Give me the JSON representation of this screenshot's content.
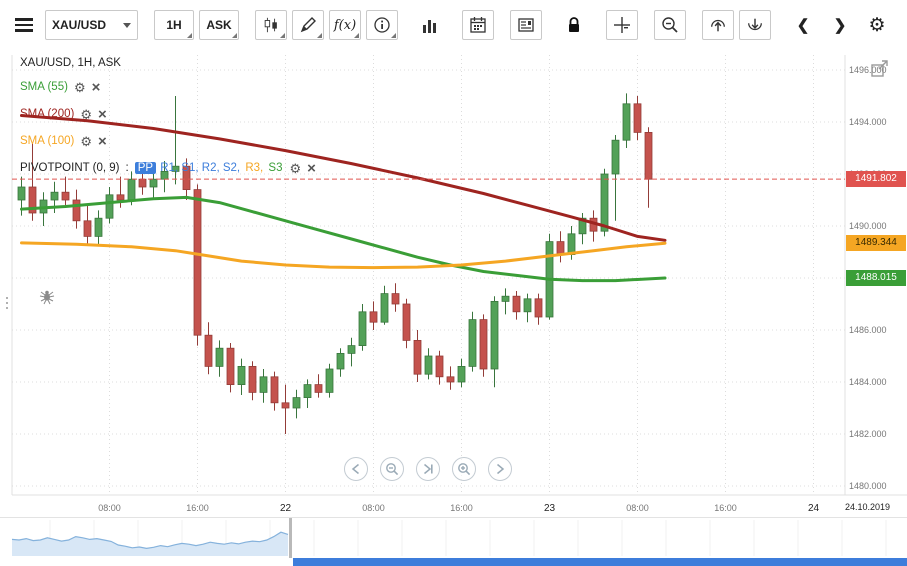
{
  "window": {
    "title": "XAU/USD, 1H, ASK"
  },
  "icons": {
    "gear": "⚙",
    "close": "×",
    "toolbar_list": [
      "menu-icon",
      "chart-type-candlestick-icon",
      "draw-icon",
      "fx-indicators-icon",
      "info-icon",
      "volume-bars-icon",
      "calendar-icon",
      "report-icon",
      "lock-icon",
      "crosshair-icon",
      "zoom-out-icon",
      "upload-circle-icon",
      "download-circle-icon",
      "chevron-left-icon",
      "chevron-right-icon",
      "settings-gear-icon"
    ]
  },
  "toolbar": {
    "symbol": "XAU/USD",
    "timeframe": "1H",
    "price_side": "ASK",
    "fx_label": "f(x)",
    "chevron_left": "❮",
    "chevron_right": "❯"
  },
  "legend": {
    "title": "XAU/USD, 1H, ASK",
    "indicators": [
      {
        "label": "SMA (55)",
        "color": "#3a9e37"
      },
      {
        "label": "SMA (200)",
        "color": "#9e2420"
      },
      {
        "label": "SMA (100)",
        "color": "#f5a623"
      }
    ],
    "pivot": {
      "label": "PIVOTPOINT (0, 9)",
      "separator": " : ",
      "segments": [
        {
          "text": "PP",
          "color": "#ffffff",
          "bg": "#3d7edb"
        },
        {
          "text": " R1, S1, R2, S2,",
          "color": "#3d7edb"
        },
        {
          "text": " R3,",
          "color": "#f5a623"
        },
        {
          "text": " S3",
          "color": "#3a9e37"
        }
      ]
    }
  },
  "chart_data": {
    "type": "candlestick",
    "symbol": "XAU/USD",
    "interval": "1H",
    "price_side": "ASK",
    "current_price": 1491.802,
    "price_axis": {
      "min": 1480,
      "max": 1496,
      "tick_step": 2
    },
    "time_axis": {
      "ticks": [
        {
          "index": 8,
          "text": "08:00",
          "day": false
        },
        {
          "index": 16,
          "text": "16:00",
          "day": false
        },
        {
          "index": 24,
          "text": "22",
          "day": true
        },
        {
          "index": 32,
          "text": "08:00",
          "day": false
        },
        {
          "index": 40,
          "text": "16:00",
          "day": false
        },
        {
          "index": 48,
          "text": "23",
          "day": true
        },
        {
          "index": 56,
          "text": "08:00",
          "day": false
        },
        {
          "index": 64,
          "text": "16:00",
          "day": false
        },
        {
          "index": 72,
          "text": "24",
          "day": true
        }
      ],
      "end_date_label": "24.10.2019"
    },
    "colors": {
      "candle_up": "#53a158",
      "candle_up_stroke": "#39753d",
      "candle_down": "#c4524d",
      "candle_down_stroke": "#933c38",
      "current_price_line": "#e0534f",
      "grid": "#dcdcdc"
    },
    "price_badges": [
      {
        "name": "last-price-badge",
        "value": "1491.802",
        "price": 1491.802,
        "bg": "#e0534f",
        "text": "#ffffff"
      },
      {
        "name": "sma100-value-badge",
        "value": "1489.344",
        "price": 1489.344,
        "bg": "#f5a623",
        "text": "#3a2b00"
      },
      {
        "name": "sma55-value-badge",
        "value": "1488.015",
        "price": 1488.015,
        "bg": "#3a9e37",
        "text": "#ffffff"
      }
    ],
    "candles": [
      [
        1491.0,
        1491.9,
        1490.4,
        1491.5
      ],
      [
        1491.5,
        1493.2,
        1490.2,
        1490.5
      ],
      [
        1490.5,
        1491.3,
        1490.0,
        1491.0
      ],
      [
        1491.0,
        1491.7,
        1490.5,
        1491.3
      ],
      [
        1491.3,
        1491.9,
        1490.8,
        1491.0
      ],
      [
        1491.0,
        1491.4,
        1489.9,
        1490.2
      ],
      [
        1490.2,
        1490.8,
        1489.3,
        1489.6
      ],
      [
        1489.6,
        1490.6,
        1489.3,
        1490.3
      ],
      [
        1490.3,
        1491.5,
        1490.1,
        1491.2
      ],
      [
        1491.2,
        1491.9,
        1490.7,
        1491.0
      ],
      [
        1491.0,
        1492.1,
        1490.8,
        1491.8
      ],
      [
        1491.8,
        1492.3,
        1491.2,
        1491.5
      ],
      [
        1491.5,
        1492.0,
        1491.0,
        1491.8
      ],
      [
        1491.8,
        1492.5,
        1491.3,
        1492.1
      ],
      [
        1492.1,
        1495.0,
        1491.6,
        1492.3
      ],
      [
        1492.3,
        1492.6,
        1491.0,
        1491.4
      ],
      [
        1491.4,
        1491.6,
        1485.4,
        1485.8
      ],
      [
        1485.8,
        1486.3,
        1484.3,
        1484.6
      ],
      [
        1484.6,
        1485.6,
        1484.2,
        1485.3
      ],
      [
        1485.3,
        1485.5,
        1483.6,
        1483.9
      ],
      [
        1483.9,
        1484.9,
        1483.5,
        1484.6
      ],
      [
        1484.6,
        1484.8,
        1483.3,
        1483.6
      ],
      [
        1483.6,
        1484.5,
        1483.2,
        1484.2
      ],
      [
        1484.2,
        1484.4,
        1482.9,
        1483.2
      ],
      [
        1483.2,
        1483.9,
        1482.0,
        1483.0
      ],
      [
        1483.0,
        1483.7,
        1482.6,
        1483.4
      ],
      [
        1483.4,
        1484.1,
        1483.0,
        1483.9
      ],
      [
        1483.9,
        1484.3,
        1483.4,
        1483.6
      ],
      [
        1483.6,
        1484.7,
        1483.4,
        1484.5
      ],
      [
        1484.5,
        1485.3,
        1484.2,
        1485.1
      ],
      [
        1485.1,
        1485.7,
        1484.6,
        1485.4
      ],
      [
        1485.4,
        1487.0,
        1485.2,
        1486.7
      ],
      [
        1486.7,
        1487.1,
        1486.0,
        1486.3
      ],
      [
        1486.3,
        1487.7,
        1486.2,
        1487.4
      ],
      [
        1487.4,
        1487.8,
        1486.7,
        1487.0
      ],
      [
        1487.0,
        1487.2,
        1485.3,
        1485.6
      ],
      [
        1485.6,
        1486.0,
        1484.0,
        1484.3
      ],
      [
        1484.3,
        1485.3,
        1484.1,
        1485.0
      ],
      [
        1485.0,
        1485.2,
        1483.9,
        1484.2
      ],
      [
        1484.2,
        1484.6,
        1483.7,
        1484.0
      ],
      [
        1484.0,
        1484.9,
        1483.8,
        1484.6
      ],
      [
        1484.6,
        1486.7,
        1484.4,
        1486.4
      ],
      [
        1486.4,
        1486.6,
        1484.2,
        1484.5
      ],
      [
        1484.5,
        1487.3,
        1483.8,
        1487.1
      ],
      [
        1487.1,
        1487.6,
        1486.6,
        1487.3
      ],
      [
        1487.3,
        1487.5,
        1486.4,
        1486.7
      ],
      [
        1486.7,
        1487.4,
        1486.3,
        1487.2
      ],
      [
        1487.2,
        1487.4,
        1486.2,
        1486.5
      ],
      [
        1486.5,
        1489.7,
        1486.4,
        1489.4
      ],
      [
        1489.4,
        1489.8,
        1488.6,
        1488.9
      ],
      [
        1488.9,
        1490.0,
        1488.7,
        1489.7
      ],
      [
        1489.7,
        1490.5,
        1489.3,
        1490.3
      ],
      [
        1490.3,
        1490.6,
        1489.4,
        1489.8
      ],
      [
        1489.8,
        1492.2,
        1489.6,
        1492.0
      ],
      [
        1492.0,
        1493.5,
        1490.2,
        1493.3
      ],
      [
        1493.3,
        1495.1,
        1493.0,
        1494.7
      ],
      [
        1494.7,
        1495.0,
        1493.3,
        1493.6
      ],
      [
        1493.6,
        1493.8,
        1490.7,
        1491.8
      ]
    ],
    "overlays": [
      {
        "name": "SMA 200",
        "color": "#9e2420",
        "points": [
          [
            0,
            1494.25
          ],
          [
            6,
            1494.05
          ],
          [
            12,
            1493.75
          ],
          [
            18,
            1493.35
          ],
          [
            24,
            1492.9
          ],
          [
            30,
            1492.4
          ],
          [
            36,
            1491.85
          ],
          [
            42,
            1491.25
          ],
          [
            46,
            1490.8
          ],
          [
            50,
            1490.35
          ],
          [
            53,
            1490.0
          ],
          [
            56,
            1489.6
          ],
          [
            58.5,
            1489.45
          ]
        ]
      },
      {
        "name": "SMA 55",
        "color": "#3a9e37",
        "points": [
          [
            0,
            1490.65
          ],
          [
            4,
            1490.75
          ],
          [
            8,
            1490.9
          ],
          [
            12,
            1491.05
          ],
          [
            15,
            1491.1
          ],
          [
            18,
            1490.9
          ],
          [
            21,
            1490.55
          ],
          [
            24,
            1490.2
          ],
          [
            27,
            1489.85
          ],
          [
            30,
            1489.5
          ],
          [
            33,
            1489.15
          ],
          [
            36,
            1488.8
          ],
          [
            39,
            1488.5
          ],
          [
            42,
            1488.25
          ],
          [
            45,
            1488.1
          ],
          [
            48,
            1487.95
          ],
          [
            51,
            1487.9
          ],
          [
            54,
            1487.9
          ],
          [
            58.5,
            1488.0
          ]
        ]
      },
      {
        "name": "SMA 100",
        "color": "#f5a623",
        "points": [
          [
            0,
            1489.35
          ],
          [
            5,
            1489.3
          ],
          [
            10,
            1489.2
          ],
          [
            14,
            1489.05
          ],
          [
            17,
            1488.85
          ],
          [
            20,
            1488.65
          ],
          [
            24,
            1488.5
          ],
          [
            28,
            1488.42
          ],
          [
            32,
            1488.4
          ],
          [
            36,
            1488.42
          ],
          [
            40,
            1488.5
          ],
          [
            44,
            1488.65
          ],
          [
            48,
            1488.85
          ],
          [
            52,
            1489.05
          ],
          [
            55,
            1489.2
          ],
          [
            58.5,
            1489.34
          ]
        ]
      }
    ]
  },
  "chart_nav": {
    "buttons": [
      "step-back",
      "zoom-out",
      "go-to-latest",
      "zoom-in",
      "step-forward"
    ]
  },
  "navigator": {
    "sparkline": [
      0.52,
      0.5,
      0.55,
      0.48,
      0.5,
      0.58,
      0.52,
      0.46,
      0.5,
      0.62,
      0.58,
      0.52,
      0.55,
      0.5,
      0.45,
      0.32,
      0.28,
      0.22,
      0.25,
      0.2,
      0.24,
      0.3,
      0.26,
      0.33,
      0.38,
      0.35,
      0.3,
      0.35,
      0.42,
      0.38,
      0.35,
      0.4,
      0.36,
      0.42,
      0.46,
      0.44,
      0.5,
      0.62,
      0.78,
      0.7
    ],
    "scrollbar_color": "#3d7ddb"
  },
  "footer": {
    "date": "24.10.2019"
  }
}
